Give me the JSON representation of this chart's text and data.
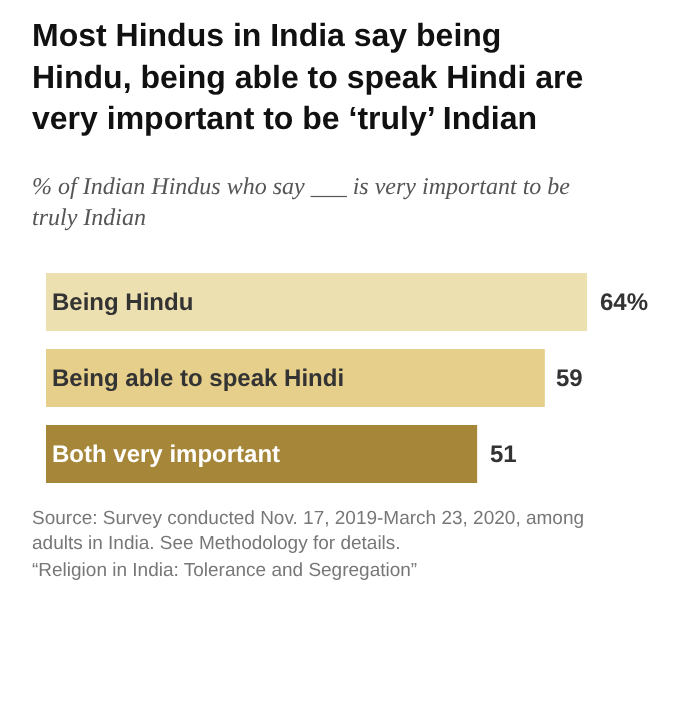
{
  "chart_data": {
    "type": "bar",
    "orientation": "horizontal",
    "title": "Most Hindus in India say being Hindu, being able to speak Hindi are very important to be ‘truly’ Indian",
    "subtitle": "% of Indian Hindus who say ___ is very important to be truly Indian",
    "categories": [
      "Being Hindu",
      "Being able to speak Hindi",
      "Both very important"
    ],
    "values": [
      64,
      59,
      51
    ],
    "colors": [
      "#ecdfb0",
      "#e5cf8a",
      "#a6873a"
    ],
    "value_labels": [
      "64%",
      "59",
      "51"
    ],
    "annotations": [
      "Source: Survey conducted Nov. 17, 2019-March 23, 2020, among adults in India. See Methodology for details.",
      "“Religion in India: Tolerance and Segregation”"
    ]
  }
}
